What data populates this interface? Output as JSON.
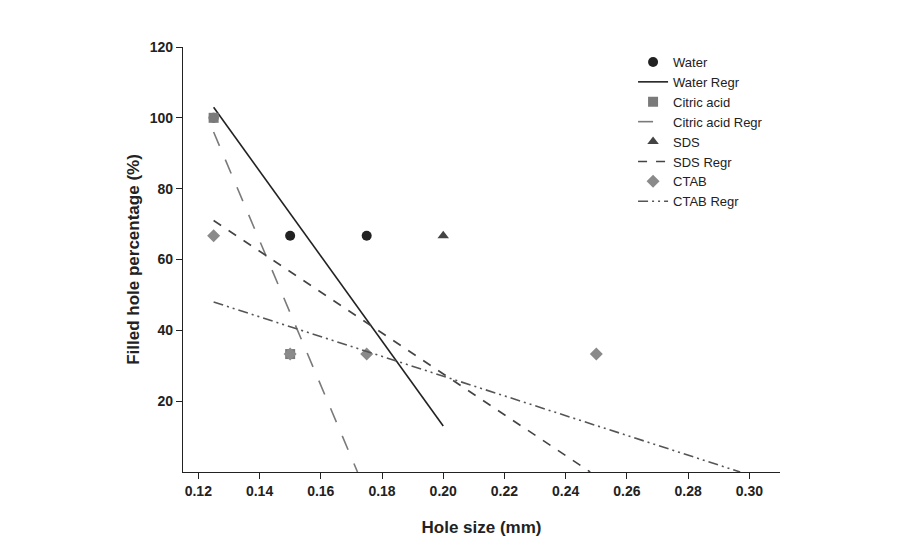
{
  "chart_data": {
    "type": "scatter",
    "x_label": "Hole size (mm)",
    "y_label": "Filled hole percentage (%)",
    "xlim": [
      0.115,
      0.31
    ],
    "xticks": [
      0.12,
      0.14,
      0.16,
      0.18,
      0.2,
      0.22,
      0.24,
      0.26,
      0.28,
      0.3
    ],
    "ylim": [
      0,
      120
    ],
    "yticks": [
      20,
      40,
      60,
      80,
      100,
      120
    ],
    "grid": false,
    "legend": "upper right",
    "series": [
      {
        "name": "Water",
        "type": "scatter",
        "color": "#222222",
        "marker": "circle",
        "x": [
          0.125,
          0.15,
          0.175
        ],
        "values": [
          100,
          66.7,
          66.7
        ]
      },
      {
        "name": "Water Regr",
        "type": "line",
        "color": "#222222",
        "line_style": "solid",
        "x": [
          0.125,
          0.2
        ],
        "values": [
          103,
          13
        ]
      },
      {
        "name": "Citric acid",
        "type": "scatter",
        "color": "#7a7a7a",
        "marker": "square",
        "x": [
          0.125,
          0.15
        ],
        "values": [
          100,
          33.3
        ]
      },
      {
        "name": "Citric acid Regr",
        "type": "line",
        "color": "#7a7a7a",
        "line_style": "longdash",
        "x": [
          0.125,
          0.172
        ],
        "values": [
          96,
          0
        ]
      },
      {
        "name": "SDS",
        "type": "scatter",
        "color": "#444444",
        "marker": "triangle",
        "x": [
          0.2
        ],
        "values": [
          66.7
        ]
      },
      {
        "name": "SDS Regr",
        "type": "line",
        "color": "#444444",
        "line_style": "dash",
        "x": [
          0.125,
          0.248
        ],
        "values": [
          71,
          0
        ]
      },
      {
        "name": "CTAB",
        "type": "scatter",
        "color": "#8a8a8a",
        "marker": "diamond",
        "x": [
          0.125,
          0.15,
          0.175,
          0.25
        ],
        "values": [
          66.7,
          33.3,
          33.3,
          33.3
        ]
      },
      {
        "name": "CTAB Regr",
        "type": "line",
        "color": "#555555",
        "line_style": "dashdotdot",
        "x": [
          0.125,
          0.297
        ],
        "values": [
          48,
          0
        ]
      }
    ]
  }
}
